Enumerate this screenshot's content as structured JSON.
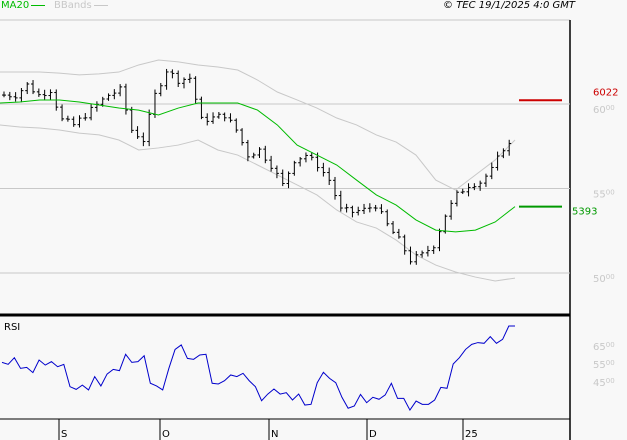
{
  "header": {
    "legend": [
      {
        "label": "MA20",
        "color": "#00bb00"
      },
      {
        "label": "BBands",
        "color": "#c8c8c8"
      }
    ],
    "copyright": "© TEC 19/1/2025 4:0 GMT"
  },
  "chart_data": [
    {
      "type": "ohlc",
      "ylim": [
        4900,
        6300
      ],
      "yticks": [
        {
          "value": 5000,
          "main": "50",
          "sup": "00"
        },
        {
          "value": 5500,
          "main": "55",
          "sup": "00"
        },
        {
          "value": 6000,
          "main": "60",
          "sup": "00"
        }
      ],
      "grid": true,
      "closes": [
        6053,
        6053,
        6112,
        6053,
        6083,
        5905,
        5876,
        5935,
        5994,
        6053,
        6083,
        5846,
        5787,
        6053,
        6201,
        6142,
        6154,
        5905,
        5917,
        5935,
        5846,
        5698,
        5728,
        5639,
        5521,
        5669,
        5698,
        5639,
        5550,
        5373,
        5361,
        5373,
        5402,
        5284,
        5195,
        5077,
        5106,
        5166,
        5343,
        5462,
        5521,
        5538,
        5609,
        5740,
        5775
      ],
      "ma20": {
        "name": "MA20",
        "color": "#00bb00",
        "values": [
          6006,
          6012,
          6024,
          6024,
          6012,
          5994,
          5976,
          5964,
          5935,
          5976,
          6006,
          6006,
          6006,
          5964,
          5876,
          5757,
          5698,
          5639,
          5550,
          5462,
          5402,
          5314,
          5254,
          5243,
          5254,
          5302,
          5393
        ]
      },
      "bbands_upper": {
        "name": "BBands",
        "color": "#c8c8c8",
        "values": [
          6189,
          6189,
          6189,
          6183,
          6172,
          6178,
          6189,
          6231,
          6260,
          6249,
          6231,
          6219,
          6201,
          6142,
          6071,
          6024,
          5976,
          5917,
          5876,
          5817,
          5775,
          5698,
          5550,
          5491,
          5580,
          5669,
          5787
        ]
      },
      "bbands_lower": {
        "name": "BBands",
        "color": "#c8c8c8",
        "values": [
          5876,
          5864,
          5858,
          5846,
          5828,
          5817,
          5787,
          5728,
          5740,
          5757,
          5787,
          5728,
          5698,
          5639,
          5580,
          5521,
          5462,
          5373,
          5302,
          5266,
          5195,
          5107,
          5047,
          5006,
          4976,
          4953,
          4970
        ]
      },
      "markers": [
        {
          "label": "6022",
          "value": 6022,
          "color": "#cc0000"
        },
        {
          "label": "5393",
          "value": 5393,
          "color": "#009900"
        }
      ]
    },
    {
      "type": "line",
      "title": "RSI",
      "ylim": [
        25,
        80
      ],
      "yticks": [
        {
          "value": 45,
          "main": "45",
          "sup": "00"
        },
        {
          "value": 55,
          "main": "55",
          "sup": "00"
        },
        {
          "value": 65,
          "main": "65",
          "sup": "00"
        }
      ],
      "color": "#0000cc",
      "values": [
        55.9,
        54.8,
        58.5,
        52.6,
        53.1,
        50.2,
        57.2,
        54.4,
        56.3,
        53.5,
        54.8,
        42.4,
        40.9,
        43.3,
        40.6,
        48,
        42.8,
        49.4,
        52,
        51.3,
        60.4,
        55.9,
        56.3,
        59.6,
        44.3,
        42.8,
        40.6,
        52.6,
        63.1,
        65.6,
        58.1,
        57.6,
        60,
        60.4,
        44.3,
        43.9,
        45.7,
        48.9,
        48,
        49.8,
        45.7,
        42.4,
        34.6,
        38.3,
        41.1,
        38.3,
        39.1,
        35,
        38.3,
        32.2,
        32.6,
        44.6,
        50.4,
        47,
        44.6,
        36.5,
        30.4,
        31.7,
        38.1,
        33.5,
        36.5,
        35.4,
        37.8,
        44.3,
        35.9,
        35.9,
        29.4,
        34.4,
        32.6,
        32.6,
        35,
        42,
        41.5,
        55,
        58.5,
        63.1,
        65.9,
        66.9,
        66.5,
        70.2,
        66.5,
        68.7,
        76.1,
        76.1
      ]
    }
  ],
  "xaxis": {
    "ticks": [
      "S",
      "O",
      "N",
      "D",
      "25"
    ]
  }
}
